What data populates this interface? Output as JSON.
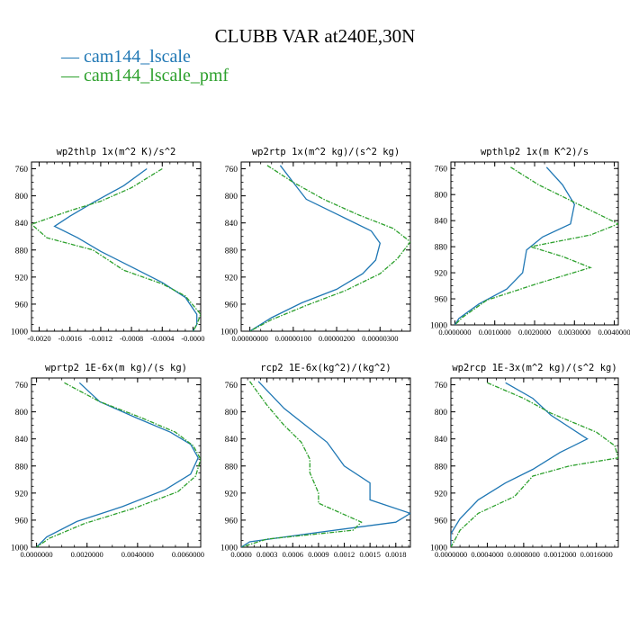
{
  "title": "CLUBB VAR at240E,30N",
  "legend": [
    {
      "label": "cam144_lscale",
      "color": "#1f77b4",
      "dash": false
    },
    {
      "label": "cam144_lscale_pmf",
      "color": "#2ca02c",
      "dash": true
    }
  ],
  "chart_data": [
    {
      "type": "line",
      "title": "wp2thlp   1x(m^2 K)/s^2",
      "xlim": [
        -0.0021,
        0.0001
      ],
      "ylim": [
        1000,
        750
      ],
      "xticks": [
        -0.002,
        -0.0016,
        -0.0012,
        -0.0008,
        -0.0004,
        0.0
      ],
      "xtick_labels": [
        "-0.0020",
        "-0.0016",
        "-0.0012",
        "-0.0008",
        "-0.0004",
        "-0.0000"
      ],
      "yticks": [
        760,
        800,
        840,
        880,
        920,
        960,
        1000
      ],
      "series": [
        {
          "name": "cam144_lscale",
          "points": [
            [
              -0.0006,
              760
            ],
            [
              -0.0009,
              785
            ],
            [
              -0.0013,
              810
            ],
            [
              -0.0016,
              830
            ],
            [
              -0.0018,
              845
            ],
            [
              -0.0015,
              862
            ],
            [
              -0.0012,
              882
            ],
            [
              -0.0008,
              905
            ],
            [
              -0.0004,
              928
            ],
            [
              -0.0001,
              950
            ],
            [
              5e-05,
              975
            ],
            [
              5e-05,
              990
            ],
            [
              -0.0,
              1000
            ]
          ]
        },
        {
          "name": "cam144_lscale_pmf",
          "points": [
            [
              -0.0004,
              760
            ],
            [
              -0.0008,
              788
            ],
            [
              -0.0012,
              808
            ],
            [
              -0.0016,
              822
            ],
            [
              -0.0021,
              842
            ],
            [
              -0.0019,
              862
            ],
            [
              -0.0013,
              880
            ],
            [
              -0.0009,
              910
            ],
            [
              -0.0004,
              930
            ],
            [
              -0.0001,
              948
            ],
            [
              0.0001,
              975
            ],
            [
              5e-05,
              990
            ],
            [
              0.0,
              1000
            ]
          ]
        }
      ]
    },
    {
      "type": "line",
      "title": "wp2rtp   1x(m^2 kg)/(s^2 kg)",
      "xlim": [
        -2e-07,
        3.7e-06
      ],
      "ylim": [
        1000,
        750
      ],
      "xticks": [
        0.0,
        1e-06,
        2e-06,
        3e-06
      ],
      "xtick_labels": [
        "0.00000000",
        "0.00000100",
        "0.00000200",
        "0.00000300"
      ],
      "yticks": [
        760,
        800,
        840,
        880,
        920,
        960,
        1000
      ],
      "series": [
        {
          "name": "cam144_lscale",
          "points": [
            [
              7e-07,
              755
            ],
            [
              1e-06,
              780
            ],
            [
              1.3e-06,
              805
            ],
            [
              2.1e-06,
              830
            ],
            [
              2.8e-06,
              852
            ],
            [
              3e-06,
              870
            ],
            [
              2.9e-06,
              895
            ],
            [
              2.6e-06,
              915
            ],
            [
              2e-06,
              938
            ],
            [
              1.2e-06,
              958
            ],
            [
              5e-07,
              980
            ],
            [
              0.0,
              1000
            ]
          ]
        },
        {
          "name": "cam144_lscale_pmf",
          "points": [
            [
              4e-07,
              755
            ],
            [
              1e-06,
              780
            ],
            [
              1.7e-06,
              805
            ],
            [
              2.5e-06,
              828
            ],
            [
              3.3e-06,
              848
            ],
            [
              3.7e-06,
              868
            ],
            [
              3.4e-06,
              893
            ],
            [
              3e-06,
              915
            ],
            [
              2.2e-06,
              940
            ],
            [
              1.3e-06,
              962
            ],
            [
              5e-07,
              983
            ],
            [
              0.0,
              1000
            ]
          ]
        }
      ]
    },
    {
      "type": "line",
      "title": "wpthlp2   1x(m K^2)/s",
      "xlim": [
        -0.0001,
        0.0041
      ],
      "ylim": [
        1000,
        750
      ],
      "xticks": [
        0.0,
        0.001,
        0.002,
        0.003,
        0.004
      ],
      "xtick_labels": [
        "0.0000000",
        "0.0010000",
        "0.0020000",
        "0.0030000",
        "0.0040000"
      ],
      "yticks": [
        760,
        800,
        840,
        880,
        920,
        960,
        1000
      ],
      "series": [
        {
          "name": "cam144_lscale",
          "points": [
            [
              0.0023,
              758
            ],
            [
              0.0027,
              785
            ],
            [
              0.003,
              815
            ],
            [
              0.0029,
              845
            ],
            [
              0.0022,
              865
            ],
            [
              0.0018,
              885
            ],
            [
              0.0017,
              920
            ],
            [
              0.0013,
              945
            ],
            [
              0.0006,
              968
            ],
            [
              0.0001,
              990
            ],
            [
              0.0,
              1000
            ]
          ]
        },
        {
          "name": "cam144_lscale_pmf",
          "points": [
            [
              0.0014,
              758
            ],
            [
              0.0021,
              785
            ],
            [
              0.0032,
              818
            ],
            [
              0.0041,
              845
            ],
            [
              0.0034,
              862
            ],
            [
              0.0019,
              880
            ],
            [
              0.0027,
              895
            ],
            [
              0.0034,
              912
            ],
            [
              0.002,
              938
            ],
            [
              0.0008,
              962
            ],
            [
              0.0002,
              988
            ],
            [
              0.0,
              1000
            ]
          ]
        }
      ]
    },
    {
      "type": "line",
      "title": "wprtp2   1E-6x(m kg)/(s kg)",
      "xlim": [
        -0.0002,
        0.0065
      ],
      "ylim": [
        1000,
        750
      ],
      "xticks": [
        0.0,
        0.002,
        0.004,
        0.006
      ],
      "xtick_labels": [
        "0.0000000",
        "0.0020000",
        "0.0040000",
        "0.0060000"
      ],
      "yticks": [
        760,
        800,
        840,
        880,
        920,
        960,
        1000
      ],
      "series": [
        {
          "name": "cam144_lscale",
          "points": [
            [
              0.0017,
              757
            ],
            [
              0.0025,
              785
            ],
            [
              0.0039,
              808
            ],
            [
              0.0053,
              830
            ],
            [
              0.0061,
              848
            ],
            [
              0.0064,
              868
            ],
            [
              0.0061,
              892
            ],
            [
              0.0051,
              915
            ],
            [
              0.0034,
              940
            ],
            [
              0.0016,
              962
            ],
            [
              0.0004,
              985
            ],
            [
              0.0,
              1000
            ]
          ]
        },
        {
          "name": "cam144_lscale_pmf",
          "points": [
            [
              0.0011,
              757
            ],
            [
              0.0025,
              785
            ],
            [
              0.0041,
              808
            ],
            [
              0.0055,
              830
            ],
            [
              0.0062,
              850
            ],
            [
              0.0065,
              870
            ],
            [
              0.0063,
              895
            ],
            [
              0.0056,
              918
            ],
            [
              0.0039,
              942
            ],
            [
              0.0019,
              965
            ],
            [
              0.0005,
              987
            ],
            [
              0.0,
              1000
            ]
          ]
        }
      ]
    },
    {
      "type": "line",
      "title": "rcp2   1E-6x(kg^2)/(kg^2)",
      "xlim": [
        0.0,
        0.00197
      ],
      "ylim": [
        1000,
        750
      ],
      "xticks": [
        0.0,
        0.0003,
        0.0006,
        0.0009,
        0.0012,
        0.0015,
        0.0018
      ],
      "xtick_labels": [
        "0.0000",
        "0.0003",
        "0.0006",
        "0.0009",
        "0.0012",
        "0.0015",
        "0.0018"
      ],
      "yticks": [
        760,
        800,
        840,
        880,
        920,
        960,
        1000
      ],
      "series": [
        {
          "name": "cam144_lscale",
          "points": [
            [
              0.0002,
              755
            ],
            [
              0.0005,
              795
            ],
            [
              0.0008,
              825
            ],
            [
              0.001,
              845
            ],
            [
              0.0012,
              880
            ],
            [
              0.0015,
              905
            ],
            [
              0.0015,
              930
            ],
            [
              0.00197,
              950
            ],
            [
              0.0018,
              963
            ],
            [
              0.0009,
              978
            ],
            [
              0.0001,
              992
            ],
            [
              0.0,
              1000
            ]
          ]
        },
        {
          "name": "cam144_lscale_pmf",
          "points": [
            [
              0.0001,
              755
            ],
            [
              0.0003,
              790
            ],
            [
              0.0005,
              820
            ],
            [
              0.0007,
              845
            ],
            [
              0.0008,
              870
            ],
            [
              0.0008,
              890
            ],
            [
              0.0009,
              920
            ],
            [
              0.0009,
              935
            ],
            [
              0.0014,
              963
            ],
            [
              0.0013,
              975
            ],
            [
              0.0003,
              988
            ],
            [
              0.0,
              1000
            ]
          ]
        }
      ]
    },
    {
      "type": "line",
      "title": "wp2rcp   1E-3x(m^2 kg)/(s^2 kg)",
      "xlim": [
        0.0,
        0.00184
      ],
      "ylim": [
        1000,
        750
      ],
      "xticks": [
        0.0,
        0.0004,
        0.0008,
        0.0012,
        0.0016
      ],
      "xtick_labels": [
        "0.0000000",
        "0.0004000",
        "0.0008000",
        "0.0012000",
        "0.0016000"
      ],
      "yticks": [
        760,
        800,
        840,
        880,
        920,
        960,
        1000
      ],
      "series": [
        {
          "name": "cam144_lscale",
          "points": [
            [
              0.0006,
              757
            ],
            [
              0.0009,
              780
            ],
            [
              0.0011,
              805
            ],
            [
              0.0015,
              840
            ],
            [
              0.0012,
              860
            ],
            [
              0.0009,
              885
            ],
            [
              0.0006,
              905
            ],
            [
              0.0003,
              930
            ],
            [
              0.0001,
              958
            ],
            [
              0.0,
              980
            ],
            [
              0.0,
              1000
            ]
          ]
        },
        {
          "name": "cam144_lscale_pmf",
          "points": [
            [
              0.0004,
              757
            ],
            [
              0.0008,
              780
            ],
            [
              0.0011,
              802
            ],
            [
              0.0016,
              830
            ],
            [
              0.0018,
              850
            ],
            [
              0.00184,
              868
            ],
            [
              0.0013,
              880
            ],
            [
              0.0009,
              895
            ],
            [
              0.0007,
              925
            ],
            [
              0.0003,
              950
            ],
            [
              0.0001,
              975
            ],
            [
              0.0,
              1000
            ]
          ]
        }
      ]
    }
  ]
}
